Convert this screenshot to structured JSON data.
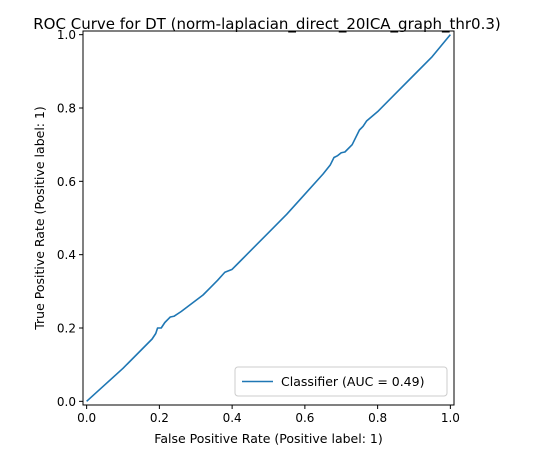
{
  "chart_data": {
    "type": "line",
    "title": "ROC Curve for DT (norm-laplacian_direct_20ICA_graph_thr0.3)",
    "xlabel": "False Positive Rate (Positive label: 1)",
    "ylabel": "True Positive Rate (Positive label: 1)",
    "xlim": [
      -0.01,
      1.01
    ],
    "ylim": [
      -0.01,
      1.01
    ],
    "xticks": [
      "0.0",
      "0.2",
      "0.4",
      "0.6",
      "0.8",
      "1.0"
    ],
    "yticks": [
      "0.0",
      "0.2",
      "0.4",
      "0.6",
      "0.8",
      "1.0"
    ],
    "grid": false,
    "legend_position": "lower-right",
    "series": [
      {
        "name": "Classifier (AUC = 0.49)",
        "color": "#1f77b4",
        "points": [
          [
            0.0,
            0.0
          ],
          [
            0.05,
            0.045
          ],
          [
            0.1,
            0.09
          ],
          [
            0.15,
            0.14
          ],
          [
            0.18,
            0.17
          ],
          [
            0.19,
            0.185
          ],
          [
            0.195,
            0.2
          ],
          [
            0.205,
            0.2
          ],
          [
            0.215,
            0.215
          ],
          [
            0.225,
            0.225
          ],
          [
            0.23,
            0.23
          ],
          [
            0.24,
            0.232
          ],
          [
            0.26,
            0.245
          ],
          [
            0.28,
            0.26
          ],
          [
            0.3,
            0.275
          ],
          [
            0.32,
            0.29
          ],
          [
            0.34,
            0.31
          ],
          [
            0.36,
            0.33
          ],
          [
            0.38,
            0.352
          ],
          [
            0.4,
            0.36
          ],
          [
            0.42,
            0.38
          ],
          [
            0.46,
            0.42
          ],
          [
            0.5,
            0.46
          ],
          [
            0.55,
            0.51
          ],
          [
            0.6,
            0.565
          ],
          [
            0.65,
            0.62
          ],
          [
            0.67,
            0.645
          ],
          [
            0.68,
            0.665
          ],
          [
            0.69,
            0.67
          ],
          [
            0.7,
            0.678
          ],
          [
            0.71,
            0.68
          ],
          [
            0.73,
            0.7
          ],
          [
            0.75,
            0.74
          ],
          [
            0.76,
            0.75
          ],
          [
            0.77,
            0.765
          ],
          [
            0.8,
            0.79
          ],
          [
            0.85,
            0.84
          ],
          [
            0.9,
            0.89
          ],
          [
            0.95,
            0.94
          ],
          [
            1.0,
            1.0
          ]
        ]
      }
    ]
  }
}
